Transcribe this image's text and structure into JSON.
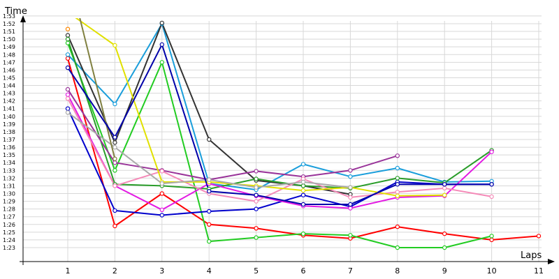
{
  "chart_data": {
    "type": "line",
    "xlabel": "Laps",
    "ylabel": "Time",
    "x": [
      1,
      2,
      3,
      4,
      5,
      6,
      7,
      8,
      9,
      10,
      11
    ],
    "ylim_seconds": [
      81,
      114
    ],
    "grid": true,
    "legend": "none",
    "y_tick_labels": [
      "1:23",
      "1:24",
      "1:25",
      "1:26",
      "1:27",
      "1:28",
      "1:29",
      "1:30",
      "1:31",
      "1:32",
      "1:33",
      "1:34",
      "1:35",
      "1:36",
      "1:37",
      "1:38",
      "1:39",
      "1:40",
      "1:41",
      "1:42",
      "1:43",
      "1:44",
      "1:45",
      "1:46",
      "1:47",
      "1:48",
      "1:49",
      "1:50",
      "1:51",
      "1:52",
      "1:53"
    ],
    "x_tick_labels": [
      "1",
      "2",
      "3",
      "4",
      "5",
      "6",
      "7",
      "8",
      "9",
      "10",
      "11"
    ],
    "series": [
      {
        "color": "#ff0000",
        "values": [
          "1:47.5",
          "1:25.8",
          "1:30.0",
          "1:26.0",
          "1:25.5",
          "1:24.6",
          "1:24.2",
          "1:25.7",
          "1:24.8",
          "1:24.0",
          "1:24.5"
        ]
      },
      {
        "color": "#22cc22",
        "values": [
          "1:49.5",
          "1:33.0",
          "1:47.0",
          "1:23.8",
          "1:24.3",
          "1:24.8",
          "1:24.6",
          "1:23.0",
          "1:23.0",
          "1:24.5",
          null
        ]
      },
      {
        "color": "#0000cc",
        "values": [
          "1:41.0",
          "1:27.8",
          "1:27.2",
          "1:27.7",
          "1:28.0",
          "1:29.8",
          "1:28.3",
          "1:31.5",
          "1:31.2",
          "1:31.2",
          null
        ]
      },
      {
        "color": "#1a9edb",
        "values": [
          "1:48.0",
          "1:41.6",
          "1:52.0",
          "1:31.3",
          "1:30.5",
          "1:33.8",
          "1:32.2",
          "1:33.3",
          "1:31.5",
          "1:31.6",
          null
        ]
      },
      {
        "color": "#333333",
        "values": [
          "1:50.5",
          "1:36.6",
          "1:52.1",
          "1:37.0",
          "1:31.7",
          "1:31.0",
          "1:29.9",
          null,
          null,
          null,
          null
        ]
      },
      {
        "color": "#2a9d2a",
        "values": [
          "1:50.0",
          "1:31.2",
          "1:31.0",
          "1:30.6",
          "1:31.9",
          "1:31.0",
          "1:30.7",
          "1:32.0",
          "1:31.4",
          "1:35.6",
          null
        ]
      },
      {
        "color": "#e31ae3",
        "values": [
          "1:42.8",
          "1:31.0",
          "1:27.9",
          "1:31.3",
          "1:29.7",
          "1:28.4",
          "1:28.1",
          "1:29.5",
          "1:29.7",
          "1:35.4",
          null
        ]
      },
      {
        "color": "#993399",
        "values": [
          "1:43.5",
          "1:34.0",
          "1:33.0",
          "1:31.8",
          "1:32.9",
          "1:32.2",
          "1:33.0",
          "1:34.9",
          null,
          null,
          null
        ]
      },
      {
        "color": "#f58ab8",
        "values": [
          "1:42.3",
          "1:31.0",
          "1:32.9",
          "1:30.0",
          "1:29.0",
          "1:31.9",
          "1:29.5",
          "1:30.2",
          "1:30.7",
          "1:29.6",
          null
        ]
      },
      {
        "color": "#e0e000",
        "values": [
          "1:53.5",
          "1:49.2",
          "1:31.5",
          "1:31.5",
          "1:31.0",
          "1:30.4",
          "1:30.8",
          "1:29.7",
          "1:29.8",
          null,
          null
        ]
      },
      {
        "color": "#aaaaaa",
        "values": [
          "1:40.5",
          "1:36.0",
          "1:31.3",
          "1:31.8",
          "1:30.8",
          "1:31.5",
          "1:30.8",
          null,
          null,
          null,
          null
        ]
      },
      {
        "color": "#808040",
        "values": [
          "1:59.0",
          "1:34.5",
          null,
          null,
          null,
          null,
          null,
          null,
          null,
          null,
          null
        ]
      },
      {
        "color": "#0000aa",
        "values": [
          "1:46.3",
          "1:37.3",
          "1:49.3",
          "1:30.3",
          "1:29.8",
          "1:28.6",
          "1:28.6",
          "1:31.2",
          "1:31.2",
          "1:31.2",
          null
        ]
      },
      {
        "color": "#ff8800",
        "values": [
          "1:51.3",
          null,
          null,
          null,
          null,
          null,
          null,
          null,
          null,
          null,
          null
        ]
      }
    ]
  }
}
